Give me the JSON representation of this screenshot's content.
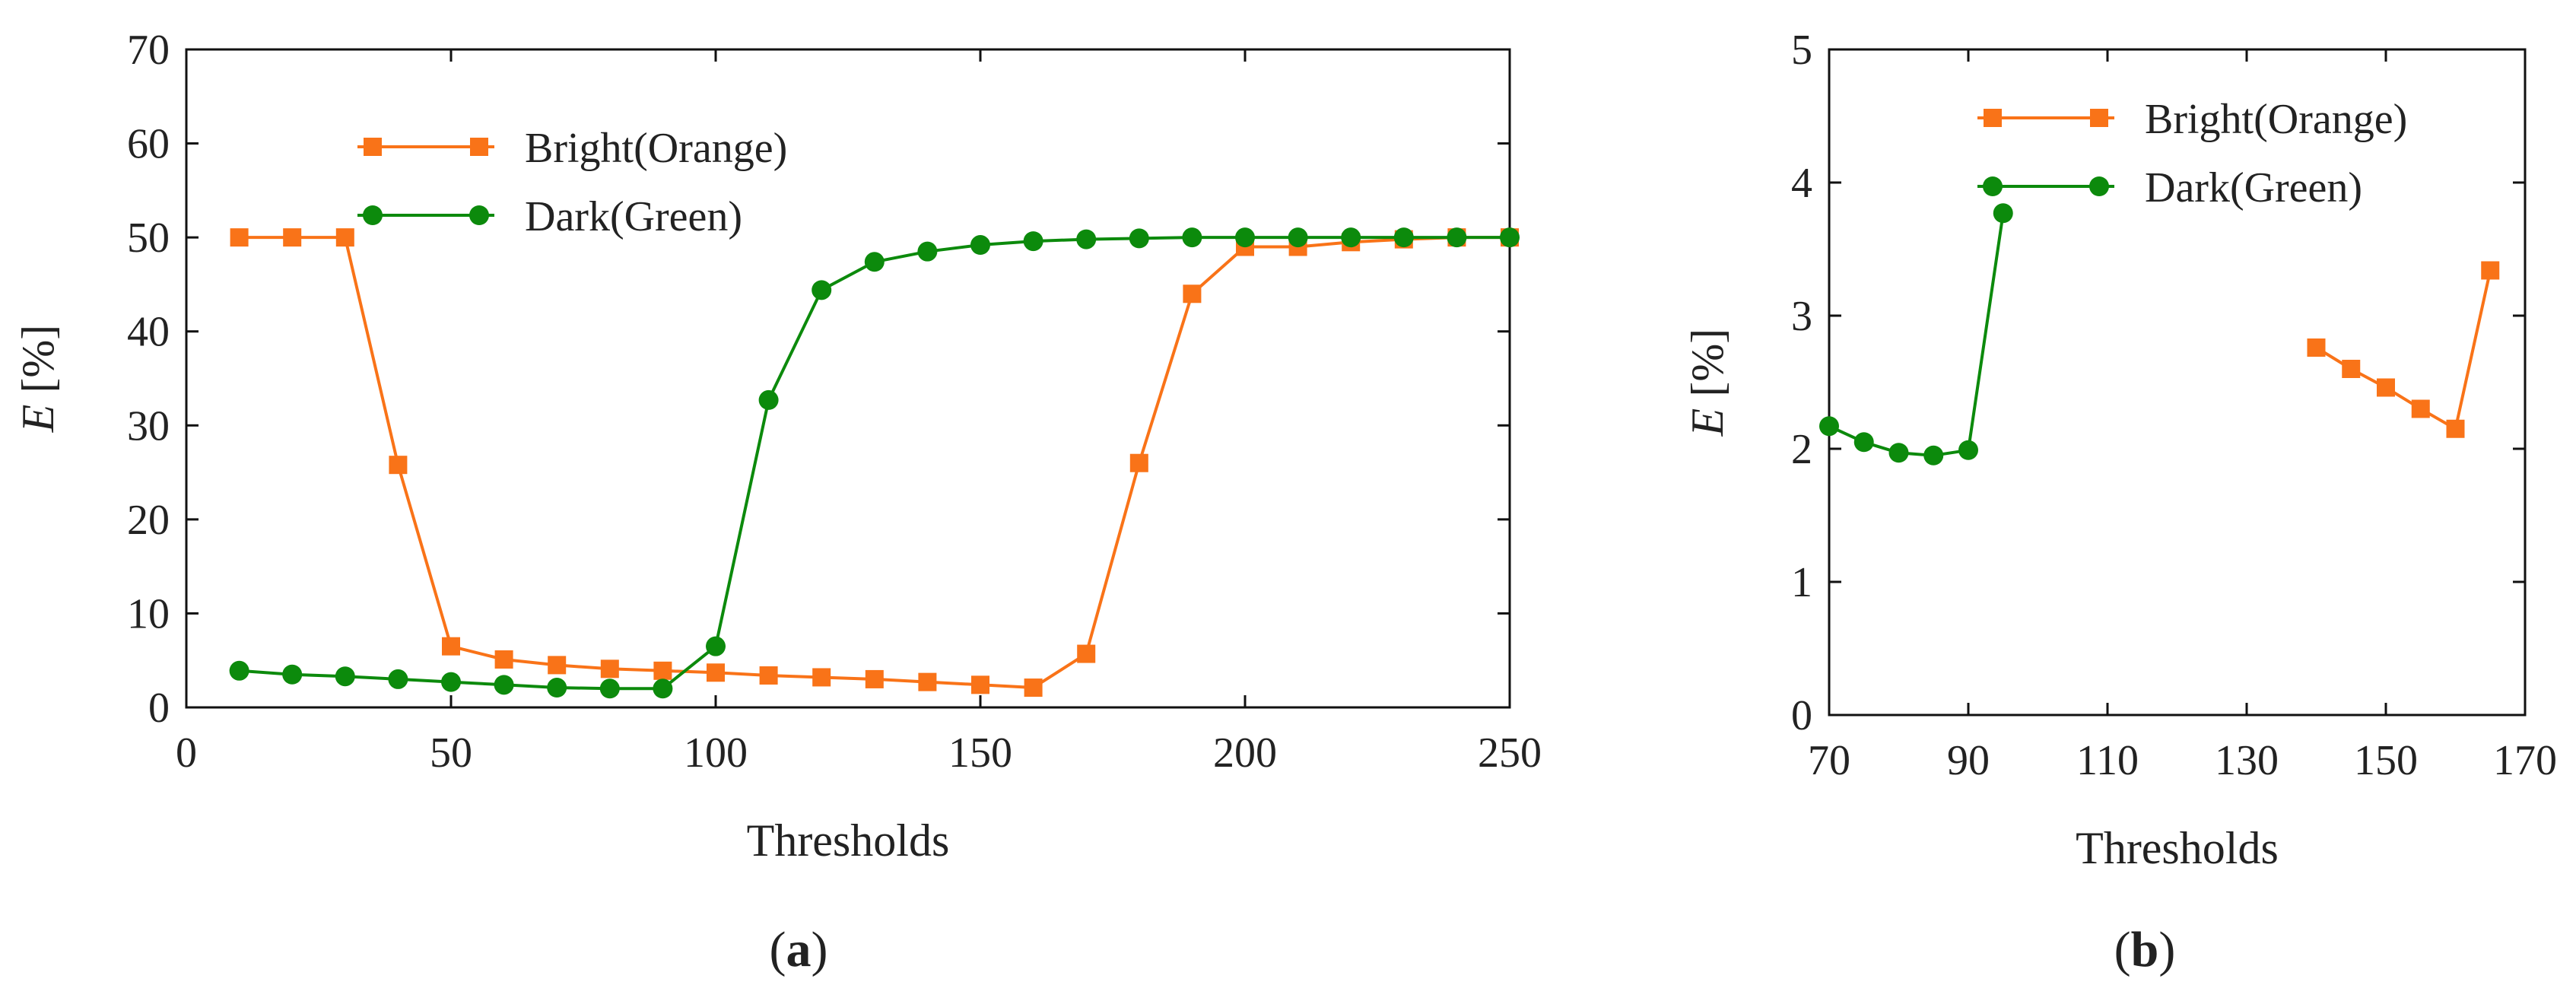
{
  "panels": [
    {
      "label_open": "(",
      "label_letter": "a",
      "label_close": ")"
    },
    {
      "label_open": "(",
      "label_letter": "b",
      "label_close": ")"
    }
  ],
  "chart_data": [
    {
      "type": "line",
      "panel": "a",
      "xlabel": "Thresholds",
      "ylabel_var": "E",
      "ylabel_unit": "[%]",
      "xlim": [
        0,
        250
      ],
      "ylim": [
        0,
        70
      ],
      "xticks": [
        0,
        50,
        100,
        150,
        200,
        250
      ],
      "yticks": [
        0,
        10,
        20,
        30,
        40,
        50,
        60,
        70
      ],
      "legend_position": "top-center",
      "series": [
        {
          "name": "Bright(Orange)",
          "color": "#F97318",
          "marker": "square",
          "x": [
            10,
            20,
            30,
            40,
            50,
            60,
            70,
            80,
            90,
            100,
            110,
            120,
            130,
            140,
            150,
            160,
            170,
            180,
            190,
            200,
            210,
            220,
            230,
            240,
            250
          ],
          "y": [
            50,
            50,
            50,
            25.8,
            6.5,
            5.1,
            4.5,
            4.1,
            3.9,
            3.7,
            3.4,
            3.2,
            3.0,
            2.7,
            2.4,
            2.1,
            5.7,
            26,
            44,
            49,
            49,
            49.5,
            49.8,
            50,
            50
          ]
        },
        {
          "name": "Dark(Green)",
          "color": "#0C8A0C",
          "marker": "circle",
          "x": [
            10,
            20,
            30,
            40,
            50,
            60,
            70,
            80,
            90,
            100,
            110,
            120,
            130,
            140,
            150,
            160,
            170,
            180,
            190,
            200,
            210,
            220,
            230,
            240,
            250
          ],
          "y": [
            3.9,
            3.5,
            3.3,
            3.0,
            2.7,
            2.4,
            2.1,
            2.0,
            2.0,
            6.5,
            32.7,
            44.4,
            47.4,
            48.5,
            49.2,
            49.6,
            49.8,
            49.9,
            50,
            50,
            50,
            50,
            50,
            50,
            50
          ]
        }
      ]
    },
    {
      "type": "line",
      "panel": "b",
      "xlabel": "Thresholds",
      "ylabel_var": "E",
      "ylabel_unit": "[%]",
      "xlim": [
        70,
        170
      ],
      "ylim": [
        0,
        5
      ],
      "xticks": [
        70,
        90,
        110,
        130,
        150,
        170
      ],
      "yticks": [
        0,
        1,
        2,
        3,
        4,
        5
      ],
      "legend_position": "top-right",
      "series": [
        {
          "name": "Bright(Orange)",
          "color": "#F97318",
          "marker": "square",
          "x": [
            140,
            145,
            150,
            155,
            160,
            165
          ],
          "y": [
            2.76,
            2.6,
            2.46,
            2.3,
            2.15,
            3.34
          ]
        },
        {
          "name": "Dark(Green)",
          "color": "#0C8A0C",
          "marker": "circle",
          "x": [
            70,
            75,
            80,
            85,
            90,
            95
          ],
          "y": [
            2.17,
            2.05,
            1.97,
            1.95,
            1.99,
            3.77
          ]
        }
      ]
    }
  ]
}
